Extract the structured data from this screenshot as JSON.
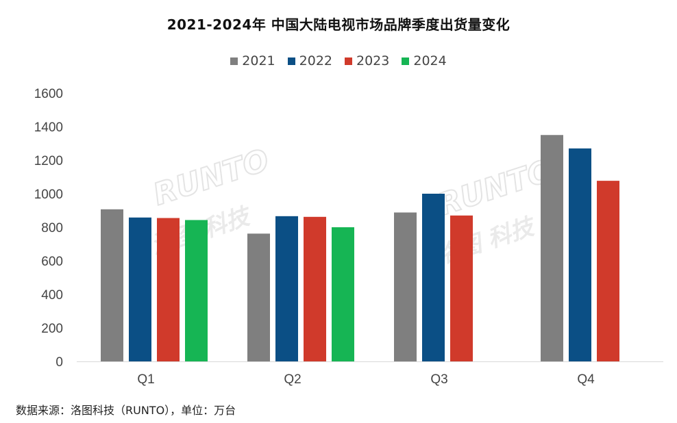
{
  "title": "2021-2024年 中国大陆电视市场品牌季度出货量变化",
  "source": "数据来源：洛图科技（RUNTO），单位：万台",
  "watermark": {
    "latin": "RUNTO",
    "cn": "洛图 科技"
  },
  "chart_data": {
    "type": "bar",
    "categories": [
      "Q1",
      "Q2",
      "Q3",
      "Q4"
    ],
    "series": [
      {
        "name": "2021",
        "color": "#7f7f7f",
        "values": [
          907,
          762,
          888,
          1350
        ]
      },
      {
        "name": "2022",
        "color": "#0b4f85",
        "values": [
          858,
          866,
          1000,
          1270
        ]
      },
      {
        "name": "2023",
        "color": "#d03a2b",
        "values": [
          855,
          862,
          870,
          1077
        ]
      },
      {
        "name": "2024",
        "color": "#16b554",
        "values": [
          843,
          800,
          null,
          null
        ]
      }
    ],
    "yticks": [
      0,
      200,
      400,
      600,
      800,
      1000,
      1200,
      1400,
      1600
    ],
    "ylim": [
      0,
      1600
    ],
    "xlabel": "",
    "ylabel": "",
    "legend_position": "top-center",
    "grid": false
  }
}
